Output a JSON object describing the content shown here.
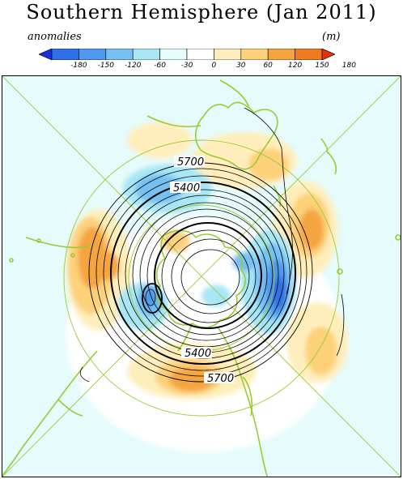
{
  "title": "Southern Hemisphere (Jan 2011)",
  "colorbar": {
    "label_left": "anomalies",
    "label_right": "(m)",
    "ticks": [
      "-180",
      "-150",
      "-120",
      "-60",
      "-30",
      "0",
      "30",
      "60",
      "120",
      "150",
      "180"
    ],
    "colors": [
      "#1a30e0",
      "#2f6fe6",
      "#4f98ee",
      "#76c0f2",
      "#a8e6f6",
      "#e6fbfb",
      "#ffffff",
      "#ffeebb",
      "#fdd07a",
      "#f5a540",
      "#ef7a20",
      "#e63010"
    ]
  },
  "map": {
    "ocean_color": "#e6fbfb",
    "coast_color": "#99cc33",
    "contour_labels": [
      "5700",
      "5400",
      "5400",
      "5700"
    ]
  }
}
